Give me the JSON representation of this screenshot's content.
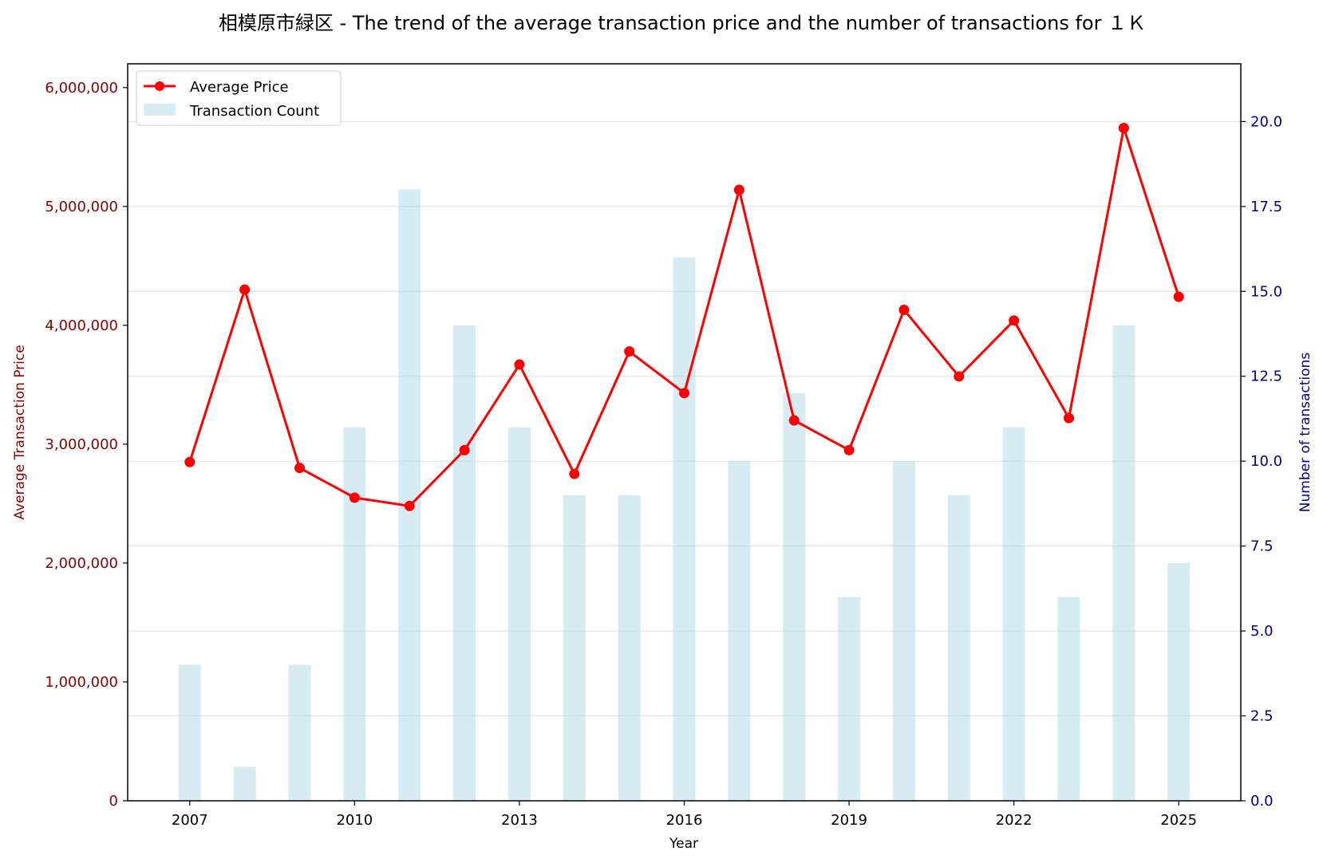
{
  "chart_data": {
    "type": "bar+line",
    "title": "相模原市緑区 - The trend of the average transaction price and the number of transactions for １Ｋ",
    "xlabel": "Year",
    "ylabel_left": "Average Transaction Price",
    "ylabel_right": "Number of transactions",
    "x": [
      2007,
      2008,
      2009,
      2010,
      2011,
      2012,
      2013,
      2014,
      2015,
      2016,
      2017,
      2018,
      2019,
      2020,
      2021,
      2022,
      2023,
      2024,
      2025
    ],
    "x_ticks": [
      "2007",
      "2010",
      "2013",
      "2016",
      "2019",
      "2022",
      "2025"
    ],
    "y_left_ticks": [
      "0",
      "1,000,000",
      "2,000,000",
      "3,000,000",
      "4,000,000",
      "5,000,000",
      "6,000,000"
    ],
    "y_right_ticks": [
      "0.0",
      "2.5",
      "5.0",
      "7.5",
      "10.0",
      "12.5",
      "15.0",
      "17.5",
      "20.0"
    ],
    "y_left_lim": [
      0,
      6200000
    ],
    "y_right_lim": [
      0,
      21.7
    ],
    "grid": true,
    "legend_position": "top-left",
    "series": [
      {
        "name": "Average Price",
        "kind": "line",
        "axis": "left",
        "color": "#ff0000",
        "values": [
          2850000,
          4300000,
          2800000,
          2550000,
          2480000,
          2950000,
          3670000,
          2750000,
          3780000,
          3430000,
          5140000,
          3200000,
          2950000,
          4130000,
          3570000,
          4040000,
          3220000,
          5660000,
          4240000
        ]
      },
      {
        "name": "Transaction Count",
        "kind": "bar",
        "axis": "right",
        "color": "#add8e6",
        "values": [
          4,
          1,
          4,
          11,
          18,
          14,
          11,
          9,
          9,
          16,
          10,
          12,
          6,
          10,
          9,
          11,
          6,
          14,
          7
        ]
      }
    ]
  },
  "colors": {
    "left_axis": "#8b0000",
    "right_axis": "#00008b",
    "bar": "#add8e6",
    "line": "#ff0000"
  }
}
